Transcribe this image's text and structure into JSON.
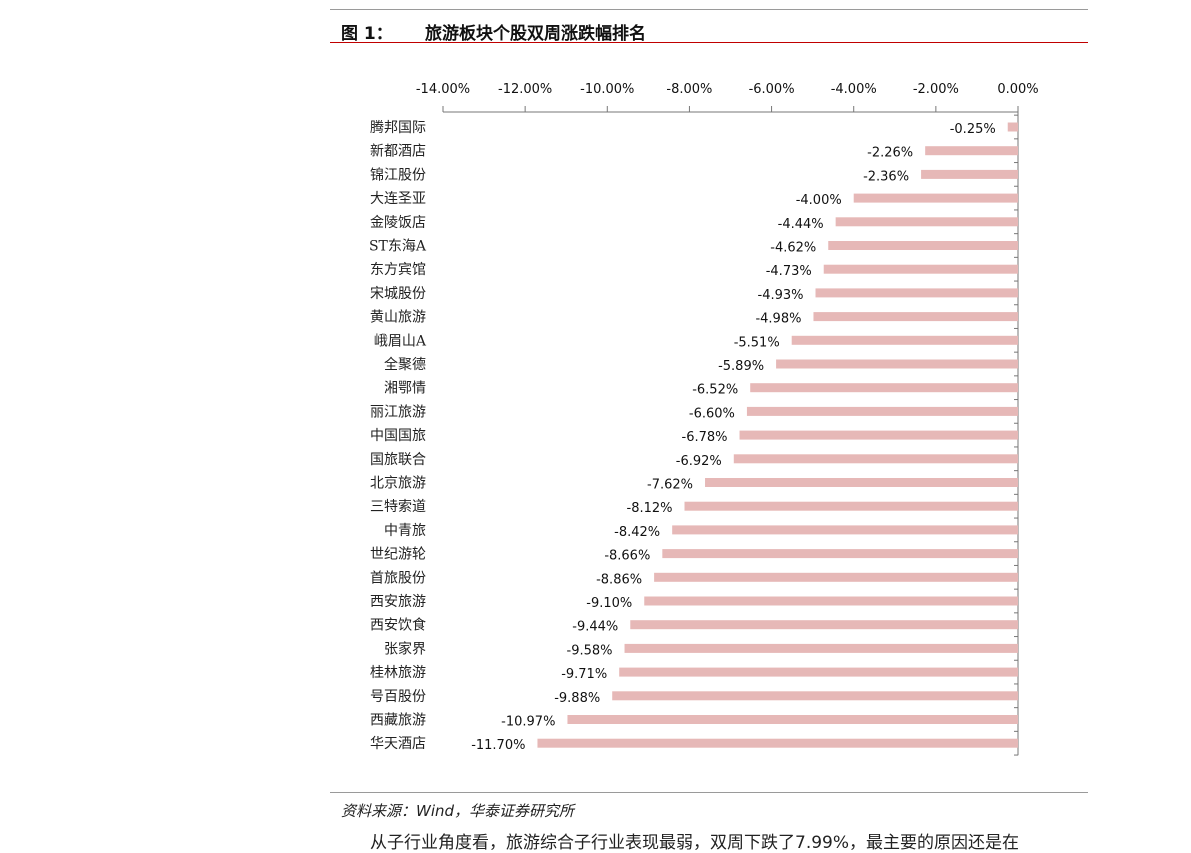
{
  "figure_label": "图 1：",
  "title": "旅游板块个股双周涨跌幅排名",
  "source": "资料来源：Wind，华泰证券研究所",
  "body_text": "从子行业角度看，旅游综合子行业表现最弱，双周下跌了7.99%，最主要的原因还是在",
  "colors": {
    "bar": "#e6b8b7",
    "accent": "#c00000"
  },
  "chart_data": {
    "type": "bar",
    "orientation": "horizontal",
    "title": "旅游板块个股双周涨跌幅排名",
    "xlabel": "",
    "ylabel": "",
    "xlim": [
      -14,
      0
    ],
    "x_ticks": [
      -14,
      -12,
      -10,
      -8,
      -6,
      -4,
      -2,
      0
    ],
    "x_tick_labels": [
      "-14.00%",
      "-12.00%",
      "-10.00%",
      "-8.00%",
      "-6.00%",
      "-4.00%",
      "-2.00%",
      "0.00%"
    ],
    "axis_position": "top",
    "grid": false,
    "categories": [
      "腾邦国际",
      "新都酒店",
      "锦江股份",
      "大连圣亚",
      "金陵饭店",
      "ST东海A",
      "东方宾馆",
      "宋城股份",
      "黄山旅游",
      "峨眉山A",
      "全聚德",
      "湘鄂情",
      "丽江旅游",
      "中国国旅",
      "国旅联合",
      "北京旅游",
      "三特索道",
      "中青旅",
      "世纪游轮",
      "首旅股份",
      "西安旅游",
      "西安饮食",
      "张家界",
      "桂林旅游",
      "号百股份",
      "西藏旅游",
      "华天酒店"
    ],
    "values": [
      -0.25,
      -2.26,
      -2.36,
      -4.0,
      -4.44,
      -4.62,
      -4.73,
      -4.93,
      -4.98,
      -5.51,
      -5.89,
      -6.52,
      -6.6,
      -6.78,
      -6.92,
      -7.62,
      -8.12,
      -8.42,
      -8.66,
      -8.86,
      -9.1,
      -9.44,
      -9.58,
      -9.71,
      -9.88,
      -10.97,
      -11.7
    ],
    "data_labels": [
      "-0.25%",
      "-2.26%",
      "-2.36%",
      "-4.00%",
      "-4.44%",
      "-4.62%",
      "-4.73%",
      "-4.93%",
      "-4.98%",
      "-5.51%",
      "-5.89%",
      "-6.52%",
      "-6.60%",
      "-6.78%",
      "-6.92%",
      "-7.62%",
      "-8.12%",
      "-8.42%",
      "-8.66%",
      "-8.86%",
      "-9.10%",
      "-9.44%",
      "-9.58%",
      "-9.71%",
      "-9.88%",
      "-10.97%",
      "-11.70%"
    ]
  }
}
